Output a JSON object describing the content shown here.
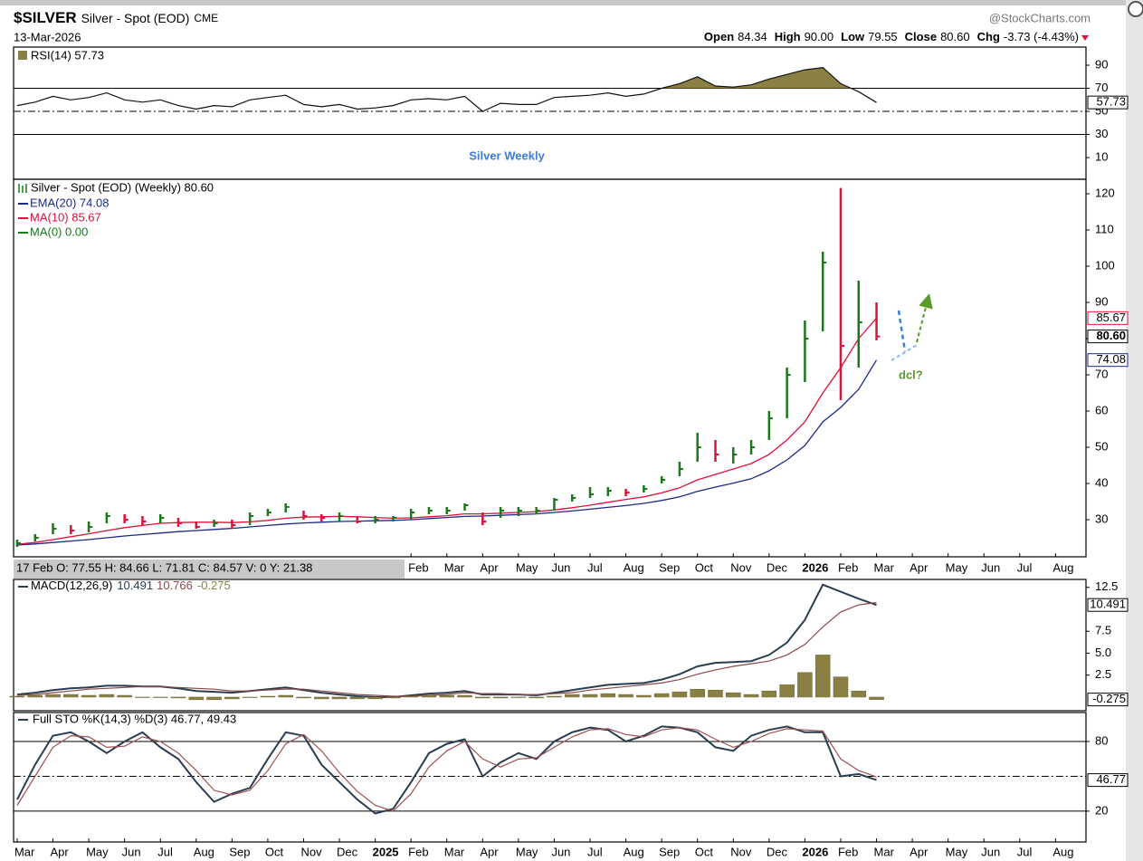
{
  "header": {
    "symbol": "$SILVER",
    "name": "Silver - Spot (EOD)",
    "exchange": "CME",
    "date": "13-Mar-2026",
    "brand": "@StockCharts.com",
    "quote": [
      {
        "label": "Open",
        "value": "84.34"
      },
      {
        "label": "High",
        "value": "90.00"
      },
      {
        "label": "Low",
        "value": "79.55"
      },
      {
        "label": "Close",
        "value": "80.60"
      },
      {
        "label": "Chg",
        "value": "-3.73 (-4.43%)"
      }
    ]
  },
  "chart_data": [
    {
      "type": "rsi",
      "legend": "RSI(14) 57.73",
      "annotation": "Silver Weekly",
      "color": "#111111",
      "fill_color": "#8b8043",
      "fill_above": 70,
      "values": [
        55,
        58,
        63,
        60,
        62,
        66,
        60,
        58,
        60,
        55,
        52,
        55,
        54,
        60,
        62,
        64,
        56,
        54,
        56,
        52,
        53,
        55,
        60,
        61,
        60,
        63,
        50,
        57,
        56,
        56,
        62,
        63,
        64,
        66,
        63,
        65,
        70,
        74,
        80,
        72,
        71,
        73,
        78,
        82,
        86,
        88,
        74,
        67,
        57.73
      ],
      "value_label": "57.73",
      "levels": [
        {
          "value": 70,
          "dash": false
        },
        {
          "value": 50,
          "dash": true
        },
        {
          "value": 30,
          "dash": false
        }
      ],
      "xlim": [
        -0.2,
        59.7
      ],
      "ylim": [
        -8.8,
        105.7
      ],
      "yticks": [
        10,
        30,
        50,
        70,
        90
      ]
    },
    {
      "type": "ohlc",
      "legend": "Silver - Spot (EOD) (Weekly) 80.60",
      "annotation": "dcl?",
      "info": "17 Feb O: 77.55 H: 84.66 L: 71.81 C: 84.57 V: 0 Y: 21.38",
      "up_color": "#1a7a1a",
      "down_color": "#e0103a",
      "high": [
        24.5,
        26,
        29,
        28.5,
        29.5,
        32,
        31.5,
        31,
        31.5,
        30.5,
        29.5,
        30,
        30,
        32,
        33,
        34.5,
        32.5,
        31.5,
        32,
        31,
        31,
        31,
        33,
        33.5,
        33.5,
        34.5,
        32,
        33.5,
        33.5,
        33.5,
        36,
        37,
        39,
        39,
        38.5,
        39.5,
        42,
        46,
        54,
        52,
        50,
        52,
        60,
        72,
        85,
        104,
        121.6,
        96,
        90
      ],
      "low": [
        22.5,
        24,
        26,
        26,
        26.5,
        29,
        29,
        28.5,
        29,
        28,
        27.5,
        28,
        27.5,
        28.5,
        31,
        32,
        30,
        29.5,
        29.5,
        29,
        29,
        29.5,
        30,
        31.5,
        31.5,
        32.5,
        28.5,
        30.5,
        31,
        31.5,
        32.5,
        35,
        36,
        36.5,
        36.5,
        37.5,
        40,
        42,
        46,
        46,
        45.5,
        48,
        52,
        58,
        68,
        82,
        63,
        72,
        79.55
      ],
      "close": [
        23.5,
        25,
        27.5,
        27,
        28,
        31,
        30,
        29.5,
        30.5,
        29,
        28,
        29,
        28.5,
        31,
        32,
        33.5,
        31,
        30.5,
        31,
        29.5,
        30,
        30.5,
        32,
        32.5,
        32.5,
        34,
        29.5,
        32.5,
        32.5,
        32.5,
        35.5,
        36,
        37,
        38,
        37.5,
        38.5,
        41,
        44,
        50,
        48,
        48,
        50,
        58,
        70,
        80,
        101,
        78,
        84.5,
        80.6
      ],
      "close_label": "80.60",
      "series": [
        {
          "name": "EMA(20) 74.08",
          "color": "#1c2a8a",
          "value_label": "74.08",
          "values": [
            23,
            23.3,
            23.7,
            24.1,
            24.5,
            25,
            25.5,
            25.9,
            26.3,
            26.7,
            27,
            27.3,
            27.6,
            28,
            28.4,
            28.8,
            29.1,
            29.3,
            29.5,
            29.6,
            29.7,
            29.8,
            30,
            30.3,
            30.6,
            30.9,
            31,
            31.2,
            31.4,
            31.6,
            32,
            32.4,
            32.9,
            33.4,
            33.9,
            34.5,
            35.3,
            36.3,
            37.8,
            39,
            40.1,
            41.3,
            43.5,
            46.5,
            50.5,
            57,
            61,
            66,
            74.08
          ]
        },
        {
          "name": "MA(10) 85.67",
          "color": "#e0103a",
          "value_label": "85.67",
          "values": [
            23.2,
            23.7,
            24.5,
            25.3,
            26.1,
            27,
            27.8,
            28.4,
            29,
            29.2,
            29.3,
            29.3,
            29.2,
            29.4,
            29.8,
            30.4,
            30.7,
            30.8,
            30.9,
            30.8,
            30.6,
            30.4,
            30.5,
            30.8,
            31.1,
            31.6,
            31.6,
            31.8,
            32,
            32.2,
            32.7,
            33.3,
            34,
            34.8,
            35.6,
            36.3,
            37.4,
            38.8,
            41,
            42.5,
            44,
            45.5,
            48,
            52,
            57,
            65,
            72,
            80,
            85.67
          ]
        },
        {
          "name": "MA(0) 0.00",
          "color": "#1a7a1a",
          "values": []
        }
      ],
      "xlim": [
        -0.2,
        59.7
      ],
      "ylim": [
        19.75,
        124
      ],
      "yticks": [
        30,
        40,
        50,
        60,
        70,
        80,
        90,
        100,
        110,
        120
      ],
      "xticks": [
        {
          "value": 22,
          "label": "Feb"
        },
        {
          "value": 24,
          "label": "Mar"
        },
        {
          "value": 26,
          "label": "Apr"
        },
        {
          "value": 28,
          "label": "May"
        },
        {
          "value": 30,
          "label": "Jun"
        },
        {
          "value": 32,
          "label": "Jul"
        },
        {
          "value": 34,
          "label": "Aug"
        },
        {
          "value": 36,
          "label": "Sep"
        },
        {
          "value": 38,
          "label": "Oct"
        },
        {
          "value": 40,
          "label": "Nov"
        },
        {
          "value": 42,
          "label": "Dec"
        },
        {
          "value": 44,
          "label": "2026"
        },
        {
          "value": 46,
          "label": "Feb"
        },
        {
          "value": 48,
          "label": "Mar"
        },
        {
          "value": 50,
          "label": "Apr"
        },
        {
          "value": 52,
          "label": "May"
        },
        {
          "value": 54,
          "label": "Jun"
        },
        {
          "value": 56,
          "label": "Jul"
        },
        {
          "value": 58,
          "label": "Aug"
        }
      ]
    },
    {
      "type": "macd",
      "legend": "MACD(12,26,9)",
      "series": [
        {
          "color": "#2b3d4f",
          "value_label": "10.491",
          "values": [
            0.3,
            0.5,
            0.8,
            1,
            1.1,
            1.3,
            1.3,
            1.2,
            1.2,
            1,
            0.7,
            0.6,
            0.5,
            0.7,
            0.9,
            1.1,
            0.8,
            0.5,
            0.3,
            0.1,
            0,
            0,
            0.2,
            0.4,
            0.5,
            0.7,
            0.3,
            0.3,
            0.3,
            0.2,
            0.5,
            0.8,
            1.1,
            1.4,
            1.5,
            1.6,
            2,
            2.6,
            3.5,
            3.9,
            4,
            4.1,
            4.8,
            6.2,
            8.8,
            12.8,
            12,
            11.2,
            10.491
          ]
        },
        {
          "color": "#8b4a4a",
          "value_label": "10.766",
          "values": [
            0.2,
            0.3,
            0.5,
            0.7,
            0.9,
            1,
            1.1,
            1.2,
            1.2,
            1.1,
            1,
            0.9,
            0.7,
            0.7,
            0.8,
            0.9,
            0.9,
            0.7,
            0.5,
            0.3,
            0.2,
            0.1,
            0.1,
            0.2,
            0.3,
            0.5,
            0.4,
            0.4,
            0.3,
            0.3,
            0.4,
            0.5,
            0.8,
            1,
            1.2,
            1.4,
            1.6,
            2,
            2.6,
            3.1,
            3.5,
            3.8,
            4.1,
            4.8,
            6,
            8,
            9.7,
            10.5,
            10.766
          ]
        },
        {
          "color": "#8b8043",
          "value_label": "-0.275",
          "histogram": true,
          "values": [
            0.1,
            0.2,
            0.3,
            0.3,
            0.2,
            0.3,
            0.2,
            0,
            0,
            -0.1,
            -0.3,
            -0.3,
            -0.2,
            0,
            0.1,
            0.2,
            -0.1,
            -0.2,
            -0.2,
            -0.2,
            -0.2,
            -0.1,
            0.1,
            0.2,
            0.2,
            0.2,
            -0.1,
            -0.1,
            0,
            -0.1,
            0.1,
            0.3,
            0.3,
            0.4,
            0.3,
            0.2,
            0.4,
            0.6,
            0.9,
            0.8,
            0.5,
            0.3,
            0.7,
            1.4,
            2.8,
            4.8,
            2.3,
            0.7,
            -0.275
          ]
        }
      ],
      "xlim": [
        -0.2,
        59.7
      ],
      "ylim": [
        -1.55,
        13.4
      ],
      "yticks": [
        2.5,
        {
          "value": 5,
          "label": "5.0"
        },
        7.5,
        12.5
      ]
    },
    {
      "type": "sto",
      "legend": "Full STO %K(14,3) %D(3) 46.77, 49.43",
      "series": [
        {
          "color": "#2b3d4f",
          "value_label": "46.77",
          "values": [
            30,
            60,
            85,
            88,
            80,
            70,
            80,
            88,
            75,
            65,
            45,
            28,
            35,
            40,
            65,
            88,
            85,
            60,
            45,
            30,
            18,
            22,
            45,
            70,
            78,
            82,
            50,
            62,
            70,
            65,
            80,
            88,
            92,
            90,
            80,
            85,
            93,
            92,
            88,
            75,
            72,
            85,
            90,
            93,
            88,
            88,
            50,
            52,
            46.77
          ]
        },
        {
          "color": "#a05050",
          "values": [
            25,
            50,
            75,
            85,
            84,
            75,
            76,
            84,
            80,
            70,
            55,
            38,
            34,
            38,
            55,
            78,
            86,
            72,
            53,
            37,
            25,
            20,
            35,
            58,
            72,
            80,
            65,
            58,
            65,
            66,
            75,
            84,
            90,
            91,
            86,
            84,
            90,
            92,
            90,
            82,
            75,
            80,
            87,
            91,
            90,
            89,
            65,
            55,
            49.43
          ]
        }
      ],
      "levels": [
        {
          "value": 80,
          "dash": false
        },
        {
          "value": 50,
          "dash": true
        },
        {
          "value": 20,
          "dash": false
        }
      ],
      "xlim": [
        -0.2,
        59.7
      ],
      "ylim": [
        -6.6,
        105
      ],
      "yticks": [
        20,
        80
      ],
      "xticks": [
        {
          "value": 0,
          "label": "Mar"
        },
        {
          "value": 2,
          "label": "Apr"
        },
        {
          "value": 4,
          "label": "May"
        },
        {
          "value": 6,
          "label": "Jun"
        },
        {
          "value": 8,
          "label": "Jul"
        },
        {
          "value": 10,
          "label": "Aug"
        },
        {
          "value": 12,
          "label": "Sep"
        },
        {
          "value": 14,
          "label": "Oct"
        },
        {
          "value": 16,
          "label": "Nov"
        },
        {
          "value": 18,
          "label": "Dec"
        },
        {
          "value": 20,
          "label": "2025"
        },
        {
          "value": 22,
          "label": "Feb"
        },
        {
          "value": 24,
          "label": "Mar"
        },
        {
          "value": 26,
          "label": "Apr"
        },
        {
          "value": 28,
          "label": "May"
        },
        {
          "value": 30,
          "label": "Jun"
        },
        {
          "value": 32,
          "label": "Jul"
        },
        {
          "value": 34,
          "label": "Aug"
        },
        {
          "value": 36,
          "label": "Sep"
        },
        {
          "value": 38,
          "label": "Oct"
        },
        {
          "value": 40,
          "label": "Nov"
        },
        {
          "value": 42,
          "label": "Dec"
        },
        {
          "value": 44,
          "label": "2026"
        },
        {
          "value": 46,
          "label": "Feb"
        },
        {
          "value": 48,
          "label": "Mar"
        },
        {
          "value": 50,
          "label": "Apr"
        },
        {
          "value": 52,
          "label": "May"
        },
        {
          "value": 54,
          "label": "Jun"
        },
        {
          "value": 56,
          "label": "Jul"
        },
        {
          "value": 58,
          "label": "Aug"
        }
      ]
    }
  ]
}
